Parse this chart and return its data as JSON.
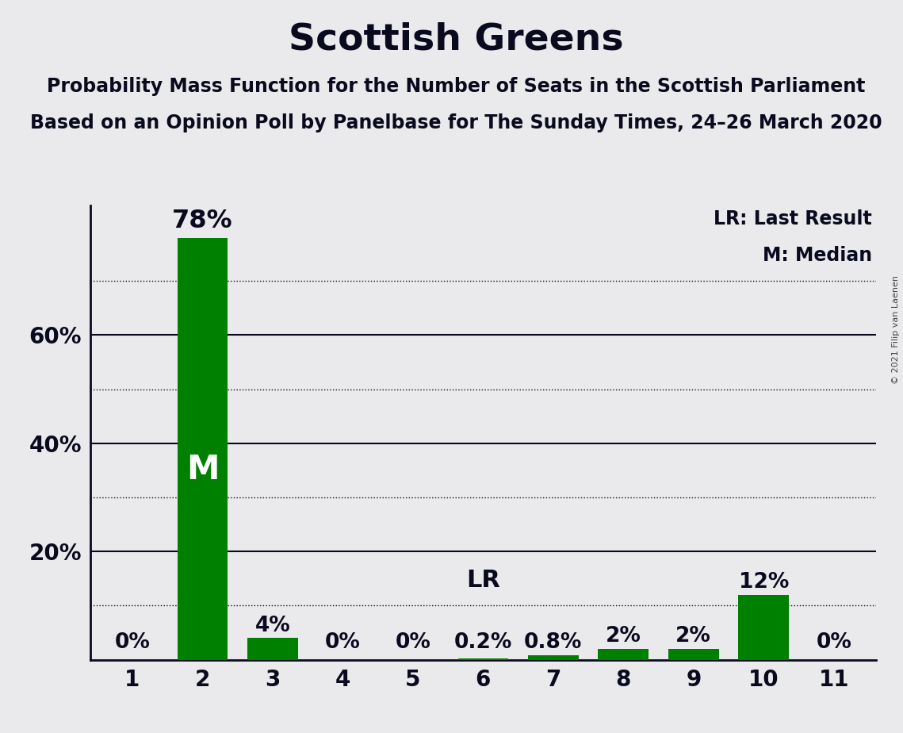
{
  "title": "Scottish Greens",
  "subtitle1": "Probability Mass Function for the Number of Seats in the Scottish Parliament",
  "subtitle2": "Based on an Opinion Poll by Panelbase for The Sunday Times, 24–26 March 2020",
  "copyright": "© 2021 Filip van Laenen",
  "categories": [
    1,
    2,
    3,
    4,
    5,
    6,
    7,
    8,
    9,
    10,
    11
  ],
  "values": [
    0,
    78,
    4,
    0,
    0,
    0.2,
    0.8,
    2,
    2,
    12,
    0
  ],
  "bar_color": "#008000",
  "background_color": "#EAEAEC",
  "median_bar_idx": 1,
  "lr_bar_idx": 5,
  "legend_lr": "LR: Last Result",
  "legend_m": "M: Median",
  "yticks": [
    20,
    40,
    60
  ],
  "ytick_labels": [
    "20%",
    "40%",
    "60%"
  ],
  "dotted_gridlines": [
    10,
    30,
    50,
    70
  ],
  "solid_gridlines": [
    20,
    40,
    60
  ],
  "ymax": 84,
  "bar_labels": [
    "0%",
    "78%",
    "4%",
    "0%",
    "0%",
    "0.2%",
    "0.8%",
    "2%",
    "2%",
    "12%",
    "0%"
  ],
  "title_fontsize": 34,
  "subtitle_fontsize": 17,
  "tick_fontsize": 20,
  "bar_label_fontsize": 19,
  "legend_fontsize": 17,
  "copyright_fontsize": 8,
  "text_color": "#0a0a1e",
  "spine_color": "#0a0a1e"
}
